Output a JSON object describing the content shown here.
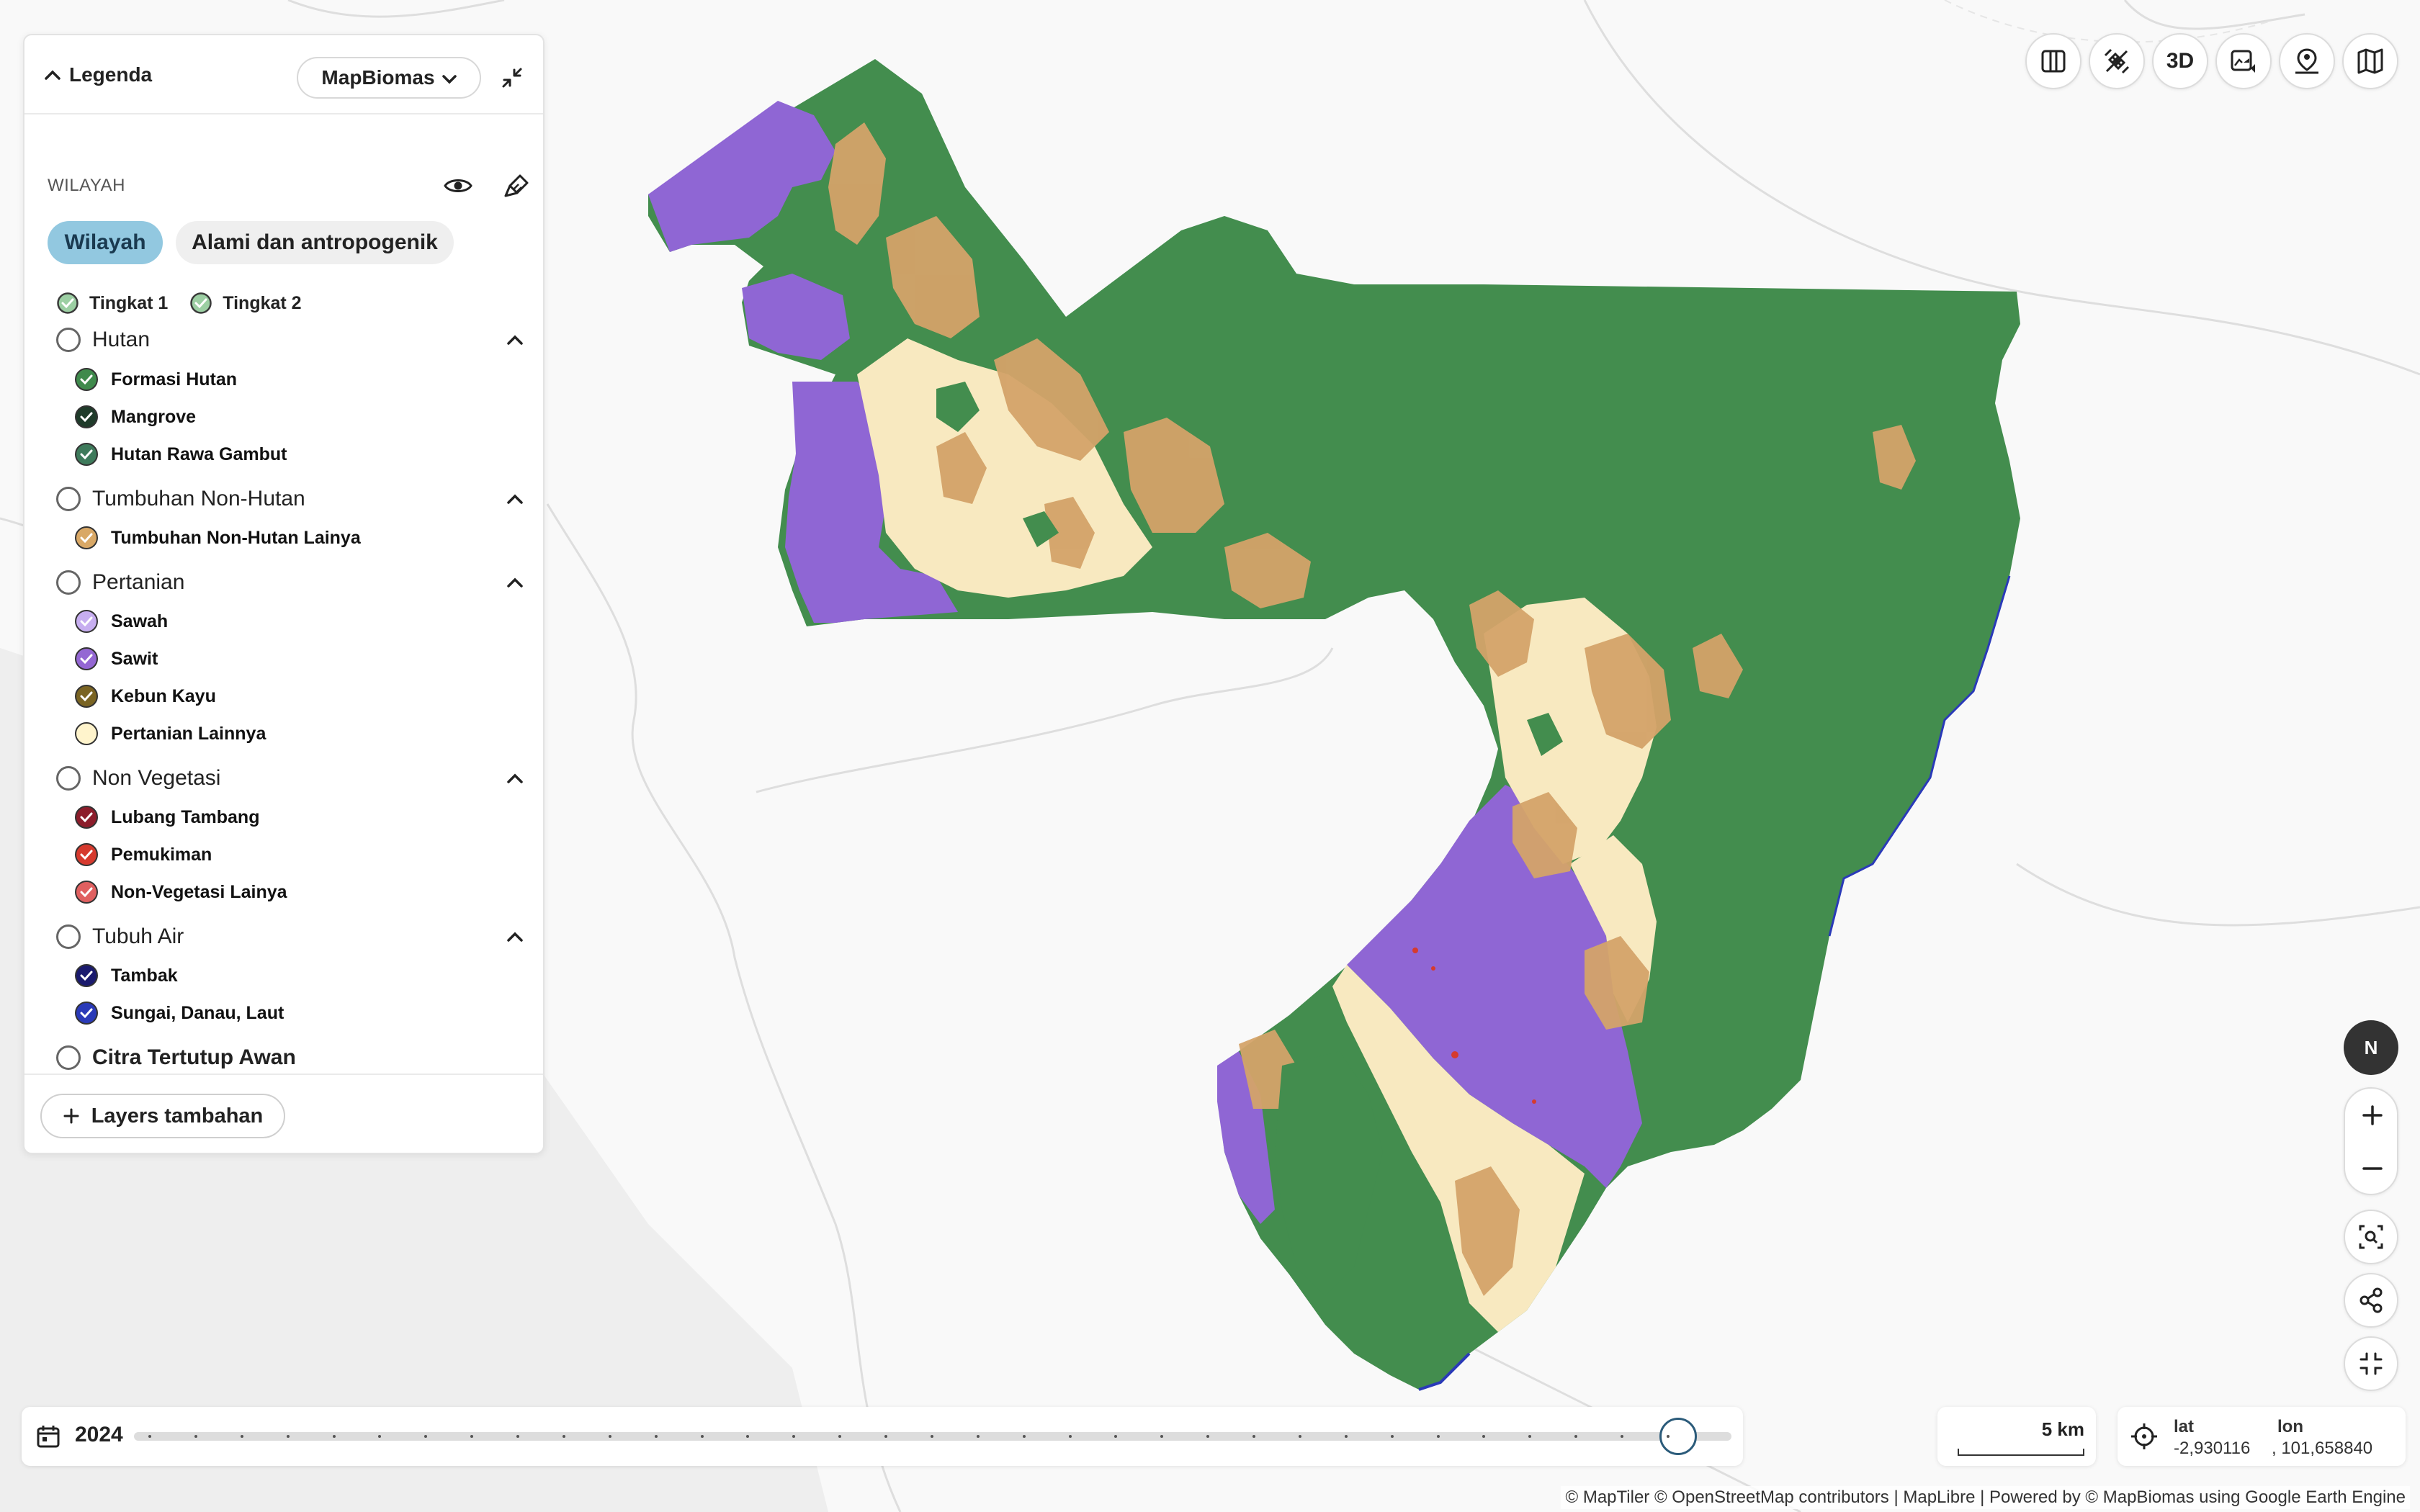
{
  "legend": {
    "title": "Legenda",
    "source_select": "MapBiomas",
    "section_title": "WILAYAH",
    "tabs": [
      "Wilayah",
      "Alami dan antropogenik"
    ],
    "levels": [
      "Tingkat 1",
      "Tingkat 2"
    ],
    "groups": [
      {
        "name": "Hutan",
        "items": [
          {
            "name": "Formasi Hutan",
            "color": "#3f8a4c"
          },
          {
            "name": "Mangrove",
            "color": "#1f3b2a"
          },
          {
            "name": "Hutan Rawa Gambut",
            "color": "#3e7a5b"
          }
        ]
      },
      {
        "name": "Tumbuhan Non-Hutan",
        "items": [
          {
            "name": "Tumbuhan Non-Hutan Lainya",
            "color": "#d9a866"
          }
        ]
      },
      {
        "name": "Pertanian",
        "items": [
          {
            "name": "Sawah",
            "color": "#c7aef0"
          },
          {
            "name": "Sawit",
            "color": "#9467d3"
          },
          {
            "name": "Kebun Kayu",
            "color": "#7a6423"
          },
          {
            "name": "Pertanian Lainnya",
            "color": "#fff4cc"
          }
        ]
      },
      {
        "name": "Non Vegetasi",
        "items": [
          {
            "name": "Lubang Tambang",
            "color": "#8c1d2b"
          },
          {
            "name": "Pemukiman",
            "color": "#d63a2e"
          },
          {
            "name": "Non-Vegetasi Lainya",
            "color": "#e06060"
          }
        ]
      },
      {
        "name": "Tubuh Air",
        "items": [
          {
            "name": "Tambak",
            "color": "#1a1a6e"
          },
          {
            "name": "Sungai, Danau, Laut",
            "color": "#2a3ab8"
          }
        ]
      }
    ],
    "cloud_label": "Citra Tertutup Awan",
    "layers_button": "Layers tambahan"
  },
  "toolbar": {
    "buttons": [
      "compare-icon",
      "satellite-icon",
      "3D",
      "image-video-icon",
      "location-person-icon",
      "basemap-icon"
    ]
  },
  "map_controls": {
    "compass": "N",
    "buttons": [
      "zoom-in-icon",
      "zoom-out-icon",
      "zoom-search-icon",
      "share-icon",
      "fullscreen-exit-icon"
    ]
  },
  "timeline": {
    "year": "2024",
    "tick_count": 34,
    "position": 1.0
  },
  "scale": {
    "label": "5 km"
  },
  "coords": {
    "lat_label": "lat",
    "lat_value": "-2,930116",
    "lon_label": "lon",
    "lon_value": ", 101,658840"
  },
  "attribution": "© MapTiler © OpenStreetMap contributors | MapLibre | Powered by © MapBiomas using Google Earth Engine",
  "colors": {
    "forest": "#438d4e",
    "oil_palm": "#8f66d4",
    "non_forest": "#d4a369",
    "agriculture": "#fbefc8",
    "active_tab": "#92c8e0"
  }
}
